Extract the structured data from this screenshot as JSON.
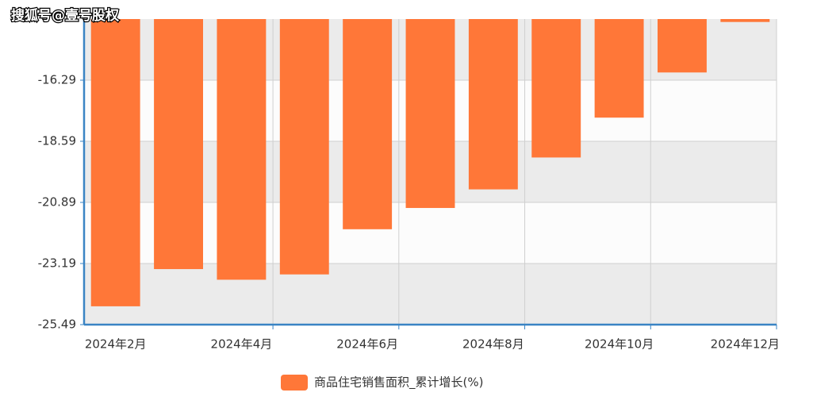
{
  "watermark": "搜狐号@壹号股权",
  "chart_data": {
    "type": "bar",
    "categories": [
      "2024年2月",
      null,
      "2024年4月",
      null,
      "2024年6月",
      null,
      "2024年8月",
      null,
      "2024年10月",
      null,
      "2024年12月"
    ],
    "series": [
      {
        "name": "商品住宅销售面积_累计增长(%)",
        "color": "#ff7738",
        "values": [
          -24.8,
          -23.4,
          -23.8,
          -23.6,
          -21.9,
          -21.1,
          -20.4,
          -19.2,
          -17.7,
          -16.0,
          -14.1
        ]
      }
    ],
    "ylim": [
      -25.49,
      -13.99
    ],
    "yticks": [
      -25.49,
      -23.19,
      -20.89,
      -18.59,
      -16.29
    ],
    "grid": true
  }
}
